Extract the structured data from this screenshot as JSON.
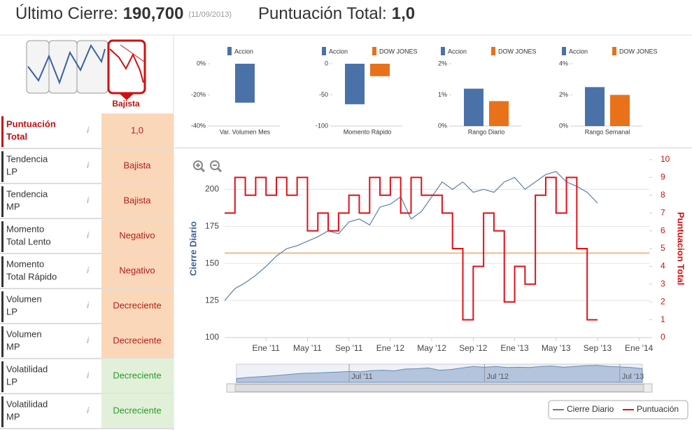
{
  "header": {
    "close_label": "Último Cierre:",
    "close_value": "190,700",
    "close_date": "(11/09/2013)",
    "score_label": "Puntuación Total:",
    "score_value": "1,0"
  },
  "trend_icon": {
    "label": "Bajista"
  },
  "scores": [
    {
      "label": [
        "Puntuación",
        "Total"
      ],
      "value": "1,0",
      "bg": "#fbd7b9",
      "text_color": "#b0201a"
    },
    {
      "label": [
        "Tendencia",
        "LP"
      ],
      "value": "Bajista",
      "bg": "#fbd7b9",
      "text_color": "#b0201a"
    },
    {
      "label": [
        "Tendencia",
        "MP"
      ],
      "value": "Bajista",
      "bg": "#fbd7b9",
      "text_color": "#b0201a"
    },
    {
      "label": [
        "Momento",
        "Total Lento"
      ],
      "value": "Negativo",
      "bg": "#fbd7b9",
      "text_color": "#b0201a"
    },
    {
      "label": [
        "Momento",
        "Total Rápido"
      ],
      "value": "Negativo",
      "bg": "#fbd7b9",
      "text_color": "#b0201a"
    },
    {
      "label": [
        "Volumen",
        "LP"
      ],
      "value": "Decreciente",
      "bg": "#fbd7b9",
      "text_color": "#b0201a"
    },
    {
      "label": [
        "Volumen",
        "MP"
      ],
      "value": "Decreciente",
      "bg": "#fbd7b9",
      "text_color": "#b0201a"
    },
    {
      "label": [
        "Volatilidad",
        "LP"
      ],
      "value": "Decreciente",
      "bg": "#e2f0d9",
      "text_color": "#2a9a2a"
    },
    {
      "label": [
        "Volatilidad",
        "MP"
      ],
      "value": "Decreciente",
      "bg": "#e2f0d9",
      "text_color": "#2a9a2a"
    }
  ],
  "chart_data": [
    {
      "type": "bar",
      "categories": [
        "Var. Volumen Mes"
      ],
      "series": [
        {
          "name": "Accion",
          "color": "#4a72a8",
          "values": [
            -25
          ]
        }
      ],
      "ylim": [
        -40,
        0
      ],
      "yticks": [
        {
          "value": 0,
          "label": "0%"
        },
        {
          "value": -20,
          "label": "-20%"
        },
        {
          "value": -40,
          "label": "-40%"
        }
      ]
    },
    {
      "type": "bar",
      "categories": [
        "Momento Rápido"
      ],
      "series": [
        {
          "name": "Accion",
          "color": "#4a72a8",
          "values": [
            -65
          ]
        },
        {
          "name": "DOW JONES",
          "color": "#e8711a",
          "values": [
            -20
          ]
        }
      ],
      "ylim": [
        -100,
        0
      ],
      "yticks": [
        0,
        -50,
        -100
      ]
    },
    {
      "type": "bar",
      "categories": [
        "Rango Diario"
      ],
      "series": [
        {
          "name": "Accion",
          "color": "#4a72a8",
          "values": [
            1.2
          ]
        },
        {
          "name": "DOW JONES",
          "color": "#e8711a",
          "values": [
            0.8
          ]
        }
      ],
      "ylim": [
        0,
        2
      ],
      "yticks": [
        {
          "value": 0,
          "label": "0%"
        },
        {
          "value": 1,
          "label": "1%"
        },
        {
          "value": 2,
          "label": "2%"
        }
      ]
    },
    {
      "type": "bar",
      "categories": [
        "Rango Semanal"
      ],
      "series": [
        {
          "name": "Accion",
          "color": "#4a72a8",
          "values": [
            2.5
          ]
        },
        {
          "name": "DOW JONES",
          "color": "#e8711a",
          "values": [
            2.0
          ]
        }
      ],
      "ylim": [
        0,
        4
      ],
      "yticks": [
        {
          "value": 0,
          "label": "0%"
        },
        {
          "value": 2,
          "label": "2%"
        },
        {
          "value": 4,
          "label": "4%"
        }
      ]
    },
    {
      "type": "line",
      "ylabel": "Cierre Diario",
      "y2label": "Puntuacion Total",
      "x": [
        "2010-09",
        "2010-10",
        "2010-11",
        "2010-12",
        "2011-01",
        "2011-02",
        "2011-03",
        "2011-04",
        "2011-05",
        "2011-06",
        "2011-07",
        "2011-08",
        "2011-09",
        "2011-10",
        "2011-11",
        "2011-12",
        "2012-01",
        "2012-02",
        "2012-03",
        "2012-04",
        "2012-05",
        "2012-06",
        "2012-07",
        "2012-08",
        "2012-09",
        "2012-10",
        "2012-11",
        "2012-12",
        "2013-01",
        "2013-02",
        "2013-03",
        "2013-04",
        "2013-05",
        "2013-06",
        "2013-07",
        "2013-08",
        "2013-09"
      ],
      "series": [
        {
          "name": "Cierre Diario",
          "color": "#5a7fa8",
          "values": [
            125,
            133,
            137,
            142,
            148,
            155,
            160,
            162,
            165,
            168,
            172,
            170,
            178,
            180,
            176,
            188,
            190,
            195,
            180,
            185,
            195,
            205,
            200,
            205,
            198,
            200,
            198,
            205,
            208,
            200,
            205,
            210,
            212,
            205,
            202,
            198,
            190.7
          ]
        },
        {
          "name": "Puntuación",
          "color": "#e0101a",
          "axis": "y2",
          "step": true,
          "values": [
            7,
            9,
            8,
            9,
            8,
            9,
            8,
            9,
            6,
            7,
            6,
            7,
            8,
            7,
            9,
            8,
            9,
            7,
            9,
            8,
            8,
            7,
            5,
            1,
            4,
            7,
            6,
            2,
            4,
            3,
            8,
            9,
            7,
            9,
            5,
            1,
            1
          ]
        }
      ],
      "xlim": [
        "2010-09",
        "2014-02"
      ],
      "xticks": [
        {
          "value": "2011-01",
          "label": "Ene '11"
        },
        {
          "value": "2011-05",
          "label": "May '11"
        },
        {
          "value": "2011-09",
          "label": "Sep '11"
        },
        {
          "value": "2012-01",
          "label": "Ene '12"
        },
        {
          "value": "2012-05",
          "label": "May '12"
        },
        {
          "value": "2012-09",
          "label": "Sep '12"
        },
        {
          "value": "2013-01",
          "label": "Ene '13"
        },
        {
          "value": "2013-05",
          "label": "May '13"
        },
        {
          "value": "2013-09",
          "label": "Sep '13"
        },
        {
          "value": "2014-01",
          "label": "Ene '14"
        }
      ],
      "ylim": [
        100,
        220
      ],
      "yticks": [
        100,
        125,
        150,
        175,
        200
      ],
      "y2lim": [
        0,
        10
      ],
      "y2ticks": [
        0,
        1,
        2,
        3,
        4,
        5,
        6,
        7,
        8,
        9,
        10
      ],
      "hline": {
        "value": 157,
        "color": "#f4a460"
      },
      "grid": true,
      "navigator_ticks": [
        {
          "value": "2011-07",
          "label": "Jul '11"
        },
        {
          "value": "2012-07",
          "label": "Jul '12"
        },
        {
          "value": "2013-07",
          "label": "Jul '13"
        }
      ]
    }
  ]
}
